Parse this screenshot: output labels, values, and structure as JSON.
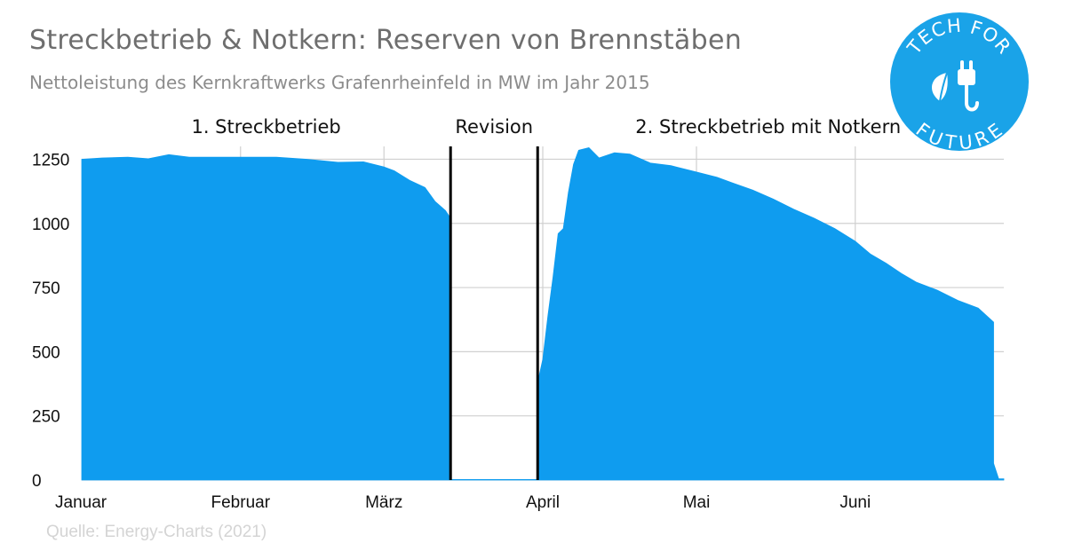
{
  "title": "Streckbetrieb & Notkern: Reserven von Brennstäben",
  "subtitle": "Nettoleistung des Kernkraftwerks Grafenrheinfeld in MW im Jahr 2015",
  "source": "Quelle: Energy-Charts (2021)",
  "logo": {
    "text_top": "TECH FOR",
    "text_bottom": "FUTURE",
    "icon": "plug-leaf-icon",
    "color": "#1aa3e8"
  },
  "colors": {
    "area": "#0f9cef",
    "grid": "#d0d0d0",
    "divider": "#000000",
    "axis_text": "#111111"
  },
  "chart_data": {
    "type": "area",
    "title": "",
    "xlabel": "",
    "ylabel": "",
    "ylim": [
      0,
      1300
    ],
    "yticks": [
      0,
      250,
      500,
      750,
      1000,
      1250
    ],
    "xlim": [
      "2015-01-01",
      "2015-06-30"
    ],
    "xticks": [
      {
        "date": "2015-01-01",
        "label": "Januar"
      },
      {
        "date": "2015-02-01",
        "label": "Februar"
      },
      {
        "date": "2015-03-01",
        "label": "März"
      },
      {
        "date": "2015-04-01",
        "label": "April"
      },
      {
        "date": "2015-05-01",
        "label": "Mai"
      },
      {
        "date": "2015-06-01",
        "label": "Juni"
      }
    ],
    "grid": true,
    "phases": [
      {
        "label": "1. Streckbetrieb",
        "start": "2015-01-01",
        "end": "2015-03-14"
      },
      {
        "label": "Revision",
        "start": "2015-03-14",
        "end": "2015-03-31"
      },
      {
        "label": "2. Streckbetrieb mit Notkern",
        "start": "2015-03-31",
        "end": "2015-06-29"
      }
    ],
    "dividers": [
      "2015-03-14",
      "2015-03-31"
    ],
    "series": [
      {
        "name": "",
        "points": [
          [
            "2015-01-01",
            1250
          ],
          [
            "2015-01-05",
            1255
          ],
          [
            "2015-01-10",
            1258
          ],
          [
            "2015-01-14",
            1252
          ],
          [
            "2015-01-18",
            1268
          ],
          [
            "2015-01-22",
            1258
          ],
          [
            "2015-02-01",
            1258
          ],
          [
            "2015-02-08",
            1258
          ],
          [
            "2015-02-14",
            1250
          ],
          [
            "2015-02-20",
            1238
          ],
          [
            "2015-02-25",
            1240
          ],
          [
            "2015-03-01",
            1220
          ],
          [
            "2015-03-03",
            1205
          ],
          [
            "2015-03-06",
            1168
          ],
          [
            "2015-03-09",
            1140
          ],
          [
            "2015-03-11",
            1085
          ],
          [
            "2015-03-13",
            1050
          ],
          [
            "2015-03-14",
            1020
          ],
          [
            "2015-03-14",
            2
          ],
          [
            "2015-03-31",
            2
          ],
          [
            "2015-03-31",
            380
          ],
          [
            "2015-04-01",
            470
          ],
          [
            "2015-04-02",
            640
          ],
          [
            "2015-04-03",
            790
          ],
          [
            "2015-04-04",
            960
          ],
          [
            "2015-04-05",
            980
          ],
          [
            "2015-04-06",
            1120
          ],
          [
            "2015-04-07",
            1230
          ],
          [
            "2015-04-08",
            1285
          ],
          [
            "2015-04-10",
            1295
          ],
          [
            "2015-04-12",
            1255
          ],
          [
            "2015-04-15",
            1275
          ],
          [
            "2015-04-18",
            1270
          ],
          [
            "2015-04-22",
            1235
          ],
          [
            "2015-04-26",
            1225
          ],
          [
            "2015-05-01",
            1200
          ],
          [
            "2015-05-05",
            1180
          ],
          [
            "2015-05-08",
            1158
          ],
          [
            "2015-05-12",
            1130
          ],
          [
            "2015-05-16",
            1095
          ],
          [
            "2015-05-20",
            1055
          ],
          [
            "2015-05-24",
            1020
          ],
          [
            "2015-05-28",
            980
          ],
          [
            "2015-06-01",
            930
          ],
          [
            "2015-06-04",
            880
          ],
          [
            "2015-06-07",
            845
          ],
          [
            "2015-06-10",
            805
          ],
          [
            "2015-06-13",
            770
          ],
          [
            "2015-06-17",
            740
          ],
          [
            "2015-06-21",
            700
          ],
          [
            "2015-06-25",
            670
          ],
          [
            "2015-06-28",
            615
          ],
          [
            "2015-06-28",
            65
          ],
          [
            "2015-06-29",
            5
          ],
          [
            "2015-06-30",
            5
          ]
        ]
      }
    ]
  }
}
